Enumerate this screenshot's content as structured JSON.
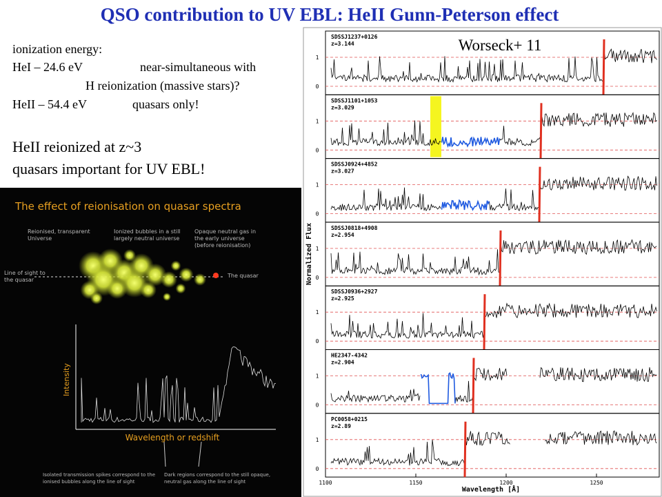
{
  "title": "QSO contribution to UV EBL: HeII Gunn-Peterson effect",
  "notes": {
    "heading": "ionization energy:",
    "hei": "HeI – 24.6 eV",
    "hei_note": [
      "near-simultaneous with",
      "H reionization (massive stars)?"
    ],
    "heii": "HeII – 54.4 eV",
    "heii_note": "quasars only!"
  },
  "highlights": [
    "HeII reionized at z~3",
    "quasars important for UV EBL!"
  ],
  "left_figure": {
    "title": "The effect of reionisation on quasar spectra",
    "captions": [
      [
        "Reionised, transparent",
        "Universe"
      ],
      [
        "Ionized bubbles in a still",
        "largely neutral universe"
      ],
      [
        "Opaque neutral gas in",
        "the early universe",
        "(before reionisation)"
      ]
    ],
    "line_of_sight": [
      "Line of sight to",
      "the quasar"
    ],
    "quasar": "The quasar",
    "y_axis": "Intensity",
    "x_axis": "Wavelength or redshift",
    "bottom": [
      [
        "Isolated transmission spikes correspond to the",
        "ionised bubbles along the line of sight"
      ],
      [
        "Dark regions correspond to the still opaque,",
        "neutral gas along the line of sight"
      ]
    ]
  },
  "right_figure": {
    "credit": "Worseck+ 11",
    "y_axis": "Normalized Flux",
    "x_axis": "Wavelength [Å]",
    "xticks": [
      1100,
      1150,
      1200,
      1250
    ],
    "yticks": [
      0,
      1
    ],
    "panels": [
      {
        "name": "SDSSJ1237+0126",
        "z": "z=3.144"
      },
      {
        "name": "SDSSJ1101+1053",
        "z": "z=3.029"
      },
      {
        "name": "SDSSJ0924+4852",
        "z": "z=3.027"
      },
      {
        "name": "SDSSJ0818+4908",
        "z": "z=2.954"
      },
      {
        "name": "SDSSJ0936+2927",
        "z": "z=2.925"
      },
      {
        "name": "HE2347-4342",
        "z": "z=2.904"
      },
      {
        "name": "PC0058+0215",
        "z": "z=2.89"
      }
    ]
  }
}
